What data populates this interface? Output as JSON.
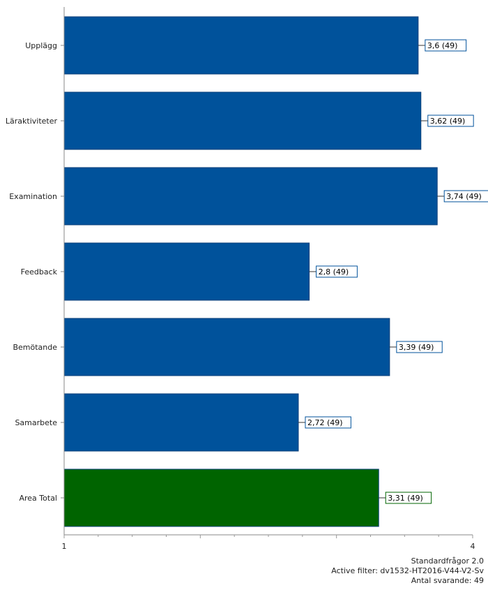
{
  "chart_data": {
    "type": "bar",
    "orientation": "horizontal",
    "categories": [
      "Upplägg",
      "Läraktiviteter",
      "Examination",
      "Feedback",
      "Bemötande",
      "Samarbete",
      "Area Total"
    ],
    "values": [
      3.6,
      3.62,
      3.74,
      2.8,
      3.39,
      2.72,
      3.31
    ],
    "value_labels": [
      "3,6 (49)",
      "3,62 (49)",
      "3,74 (49)",
      "2,8 (49)",
      "3,39 (49)",
      "2,72 (49)",
      "3,31 (49)"
    ],
    "colors": [
      "#00529b",
      "#00529b",
      "#00529b",
      "#00529b",
      "#00529b",
      "#00529b",
      "#006400"
    ],
    "xlim": [
      1,
      4
    ],
    "x_ticks": [
      "1",
      "4"
    ],
    "grid": false
  },
  "footer": {
    "line1": "Standardfrågor 2.0",
    "line2": "Active filter: dv1532-HT2016-V44-V2-Sv",
    "line3": "Antal svarande: 49"
  }
}
